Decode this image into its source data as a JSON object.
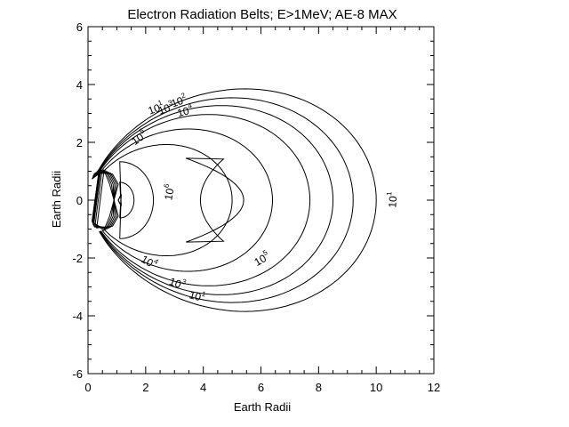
{
  "chart_data": {
    "type": "contour",
    "title": "Electron Radiation Belts; E>1MeV; AE-8 MAX",
    "xlabel": "Earth Radii",
    "ylabel": "Earth Radii",
    "xlim": [
      0,
      12
    ],
    "ylim": [
      -6,
      6
    ],
    "x_major_ticks": [
      0,
      2,
      4,
      6,
      8,
      10,
      12
    ],
    "x_tick_labels": [
      "0",
      "2",
      "4",
      "6",
      "8",
      "10",
      "12"
    ],
    "x_minor_step": 0.5,
    "y_major_ticks": [
      -6,
      -4,
      -2,
      0,
      2,
      4,
      6
    ],
    "y_tick_labels": [
      "-6",
      "-4",
      "-2",
      "0",
      "2",
      "4",
      "6"
    ],
    "y_minor_step": 0.5,
    "grid": false,
    "levels": [
      {
        "name": "10^1",
        "r_eq": 10.0
      },
      {
        "name": "10^2",
        "r_eq": 9.2
      },
      {
        "name": "10^3",
        "r_eq": 8.5
      },
      {
        "name": "10^4",
        "r_eq": 7.7
      },
      {
        "name": "10^5",
        "r_eq": 6.4
      },
      {
        "name": "10^6",
        "r_eq": 5.0
      }
    ],
    "inner_belt": {
      "r_outer": 2.3,
      "r_inner": 1.55
    },
    "crescent": {
      "r_out": 5.4,
      "r_in": 4.7,
      "y_extent": 1.45
    },
    "contour_labels": [
      {
        "base": "10",
        "exp": "1",
        "x": 10.7,
        "y": 0.0,
        "rotate": -86
      },
      {
        "base": "10",
        "exp": "5",
        "x": 6.1,
        "y": -2.15,
        "rotate": -30
      },
      {
        "base": "10",
        "exp": "6",
        "x": 2.95,
        "y": 0.25,
        "rotate": -80
      },
      {
        "base": "10",
        "exp": "1",
        "x": 2.4,
        "y": 3.05,
        "rotate": -20
      },
      {
        "base": "10",
        "exp": "2",
        "x": 3.2,
        "y": 3.3,
        "rotate": -20
      },
      {
        "base": "10",
        "exp": "3",
        "x": 2.75,
        "y": 3.05,
        "rotate": -20
      },
      {
        "base": "10",
        "exp": "4",
        "x": 3.4,
        "y": 2.95,
        "rotate": -15
      },
      {
        "base": "10",
        "exp": "5",
        "x": 1.85,
        "y": 2.05,
        "rotate": -35
      },
      {
        "base": "10",
        "exp": "4",
        "x": 2.05,
        "y": -2.25,
        "rotate": 30
      },
      {
        "base": "10",
        "exp": "3",
        "x": 3.05,
        "y": -3.0,
        "rotate": 20
      },
      {
        "base": "10",
        "exp": "1",
        "x": 3.75,
        "y": -3.45,
        "rotate": 15
      }
    ]
  }
}
